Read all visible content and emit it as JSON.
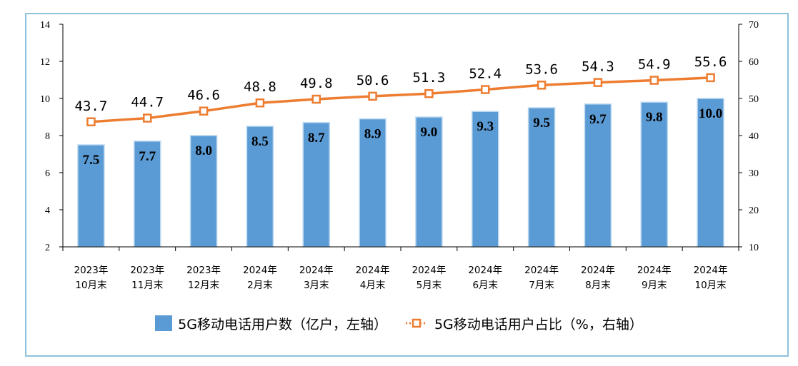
{
  "chart_data": {
    "type": "bar",
    "categories": [
      [
        "2023年",
        "10月末"
      ],
      [
        "2023年",
        "11月末"
      ],
      [
        "2023年",
        "12月末"
      ],
      [
        "2024年",
        "2月末"
      ],
      [
        "2024年",
        "3月末"
      ],
      [
        "2024年",
        "4月末"
      ],
      [
        "2024年",
        "5月末"
      ],
      [
        "2024年",
        "6月末"
      ],
      [
        "2024年",
        "7月末"
      ],
      [
        "2024年",
        "8月末"
      ],
      [
        "2024年",
        "9月末"
      ],
      [
        "2024年",
        "10月末"
      ]
    ],
    "series": [
      {
        "name": "5G移动电话用户数（亿户，左轴）",
        "type": "bar",
        "axis": "left",
        "color": "#5b9bd5",
        "values": [
          7.5,
          7.7,
          8.0,
          8.5,
          8.7,
          8.9,
          9.0,
          9.3,
          9.5,
          9.7,
          9.8,
          10.0
        ],
        "labels": [
          "7.5",
          "7.7",
          "8.0",
          "8.5",
          "8.7",
          "8.9",
          "9.0",
          "9.3",
          "9.5",
          "9.7",
          "9.8",
          "10.0"
        ]
      },
      {
        "name": "5G移动电话用户占比（%，右轴）",
        "type": "line",
        "axis": "right",
        "color": "#ed7d31",
        "values": [
          43.7,
          44.7,
          46.6,
          48.8,
          49.8,
          50.6,
          51.3,
          52.4,
          53.6,
          54.3,
          54.9,
          55.6
        ],
        "labels": [
          "43.7",
          "44.7",
          "46.6",
          "48.8",
          "49.8",
          "50.6",
          "51.3",
          "52.4",
          "53.6",
          "54.3",
          "54.9",
          "55.6"
        ]
      }
    ],
    "left_axis": {
      "ylim": [
        2,
        14
      ],
      "ticks": [
        "2",
        "4",
        "6",
        "8",
        "10",
        "12",
        "14"
      ]
    },
    "right_axis": {
      "ylim": [
        10,
        70
      ],
      "ticks": [
        "10",
        "20",
        "30",
        "40",
        "50",
        "60",
        "70"
      ]
    },
    "grid": false,
    "legend_position": "bottom"
  },
  "legend": {
    "bar_label": "5G移动电话用户数（亿户，左轴）",
    "line_label": "5G移动电话用户占比（%，右轴）"
  }
}
